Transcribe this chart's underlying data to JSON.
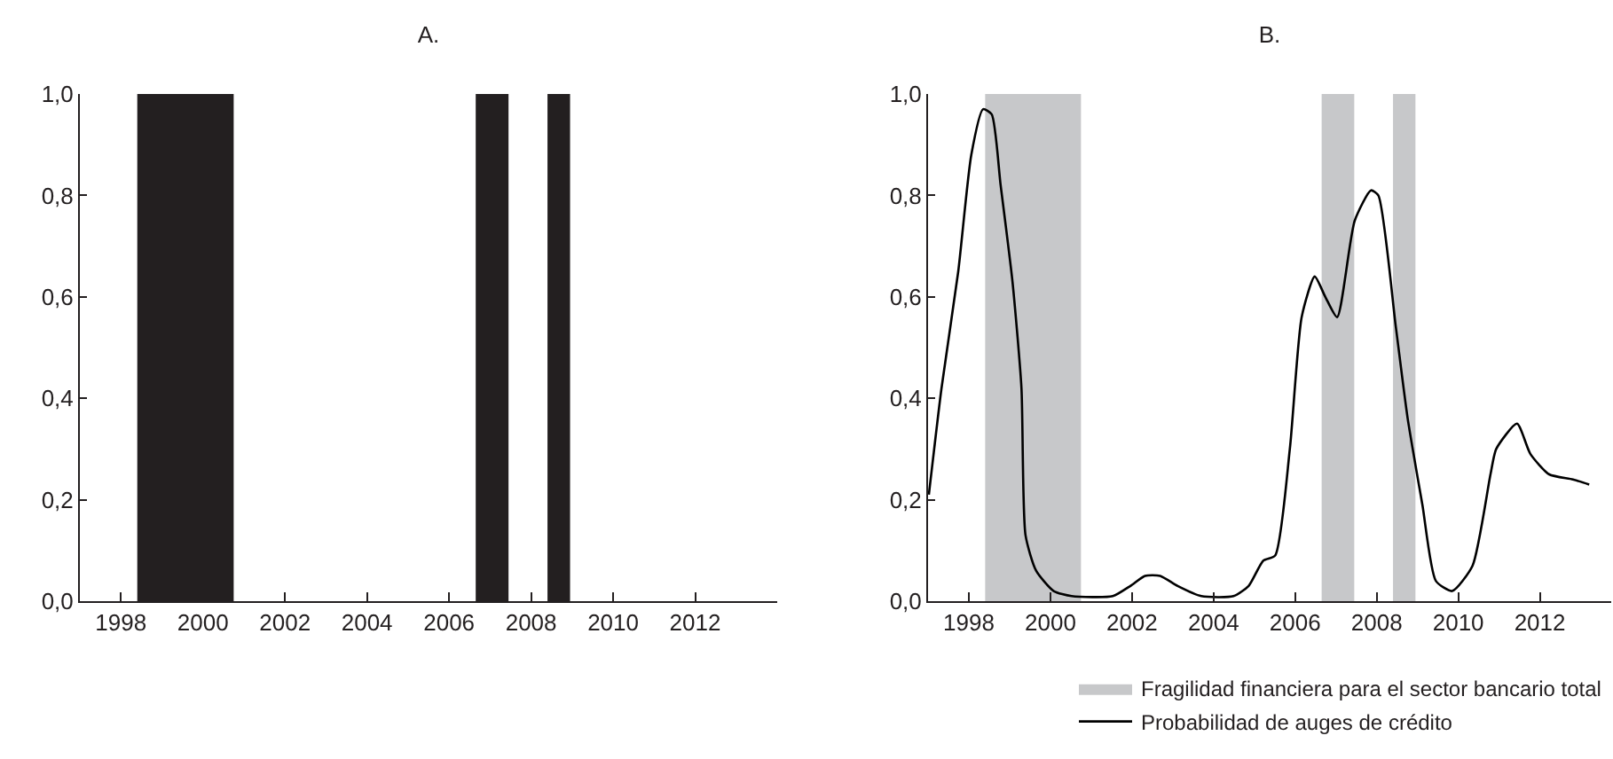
{
  "chart_data": [
    {
      "type": "area",
      "title": "A.",
      "xlim": [
        1997,
        2014
      ],
      "ylim": [
        0,
        1
      ],
      "xticks": [
        1998,
        2000,
        2002,
        2004,
        2006,
        2008,
        2010,
        2012
      ],
      "yticks": [
        {
          "value": 0,
          "label": "0,0"
        },
        {
          "value": 0.2,
          "label": "0,2"
        },
        {
          "value": 0.4,
          "label": "0,4"
        },
        {
          "value": 0.6,
          "label": "0,6"
        },
        {
          "value": 0.8,
          "label": "0,8"
        },
        {
          "value": 1,
          "label": "1,0"
        }
      ],
      "grid": false,
      "legend": false,
      "series": [
        {
          "color": "#231f20",
          "x": [
            1997,
            1998.4,
            1998.4,
            2000.75,
            2000.75,
            2006.65,
            2006.65,
            2007.45,
            2007.45,
            2008.4,
            2008.4,
            2008.95,
            2008.95,
            2014
          ],
          "values": [
            0,
            0,
            1,
            1,
            0,
            0,
            1,
            1,
            0,
            0,
            1,
            1,
            0,
            0
          ]
        }
      ]
    },
    {
      "type": "line",
      "title": "B.",
      "xlim": [
        1997,
        2013.75
      ],
      "ylim": [
        0,
        1
      ],
      "xticks": [
        1998,
        2000,
        2002,
        2004,
        2006,
        2008,
        2010,
        2012
      ],
      "yticks": [
        {
          "value": 0,
          "label": "0,0"
        },
        {
          "value": 0.2,
          "label": "0,2"
        },
        {
          "value": 0.4,
          "label": "0,4"
        },
        {
          "value": 0.6,
          "label": "0,6"
        },
        {
          "value": 0.8,
          "label": "0,8"
        },
        {
          "value": 1,
          "label": "1,0"
        }
      ],
      "grid": false,
      "legend": "bottom",
      "line_style": "solid",
      "marker": "none",
      "bands": [
        {
          "axis": "x",
          "from": 1998.4,
          "to": 2000.75,
          "label": "Fragilidad financiera para el sector bancario total",
          "color": "#c7c8ca"
        },
        {
          "axis": "x",
          "from": 2006.65,
          "to": 2007.45,
          "color": "#c7c8ca"
        },
        {
          "axis": "x",
          "from": 2008.4,
          "to": 2008.95,
          "color": "#c7c8ca"
        }
      ],
      "series": [
        {
          "name": "Probabilidad de auges de crédito",
          "color": "#000000",
          "x": [
            1997.02,
            1997.33,
            1997.74,
            1998.06,
            1998.35,
            1998.56,
            1998.78,
            1999.07,
            1999.29,
            1999.39,
            1999.65,
            2000.08,
            2000.52,
            2001.53,
            2001.96,
            2002.32,
            2002.69,
            2003.12,
            2003.7,
            2004.49,
            2004.86,
            2005.22,
            2005.51,
            2005.87,
            2006.16,
            2006.48,
            2006.74,
            2007.03,
            2007.46,
            2007.86,
            2008.04,
            2008.47,
            2008.76,
            2009.12,
            2009.45,
            2009.85,
            2010.35,
            2010.79,
            2010.93,
            2011.44,
            2011.77,
            2012.23,
            2012.81,
            2013.21
          ],
          "values": [
            0.21,
            0.42,
            0.65,
            0.88,
            0.97,
            0.96,
            0.82,
            0.63,
            0.42,
            0.13,
            0.06,
            0.02,
            0.01,
            0.01,
            0.03,
            0.05,
            0.05,
            0.03,
            0.01,
            0.01,
            0.03,
            0.08,
            0.09,
            0.3,
            0.56,
            0.64,
            0.6,
            0.56,
            0.75,
            0.81,
            0.8,
            0.54,
            0.36,
            0.19,
            0.04,
            0.02,
            0.07,
            0.25,
            0.3,
            0.35,
            0.29,
            0.25,
            0.24,
            0.23
          ]
        }
      ]
    }
  ]
}
